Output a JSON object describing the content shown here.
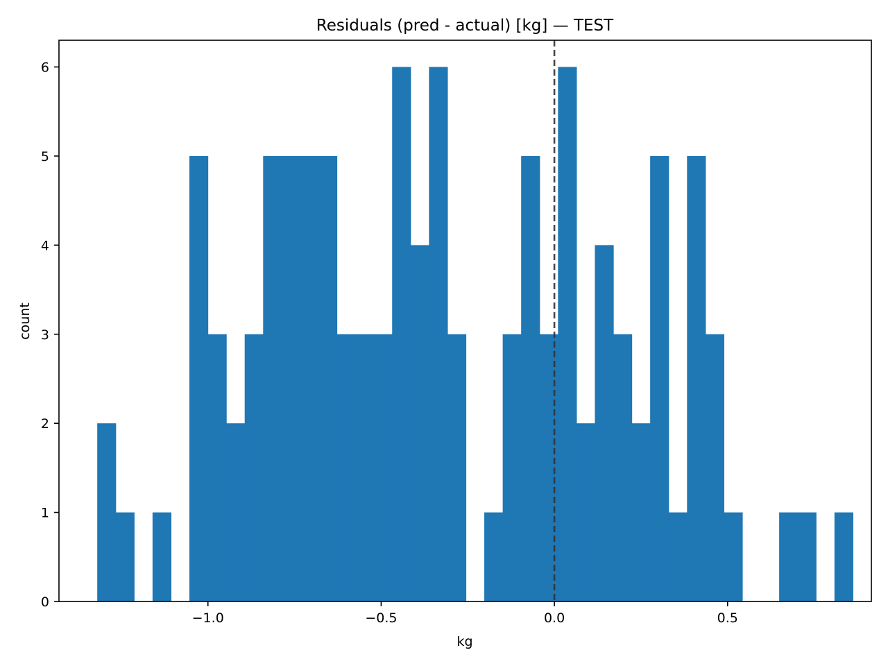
{
  "chart_data": {
    "type": "bar",
    "title": "Residuals (pred - actual) [kg] — TEST",
    "xlabel": "kg",
    "ylabel": "count",
    "xlim": [
      -1.43,
      0.915
    ],
    "ylim": [
      0,
      6.3
    ],
    "xticks": [
      -1.0,
      -0.5,
      0.0,
      0.5
    ],
    "xtick_labels": [
      "−1.0",
      "−0.5",
      "0.0",
      "0.5"
    ],
    "yticks": [
      0,
      1,
      2,
      3,
      4,
      5,
      6
    ],
    "ytick_labels": [
      "0",
      "1",
      "2",
      "3",
      "4",
      "5",
      "6"
    ],
    "grid": false,
    "bin_start": -1.3195,
    "bin_width": 0.0532,
    "counts": [
      2,
      1,
      0,
      1,
      0,
      5,
      3,
      2,
      3,
      5,
      5,
      5,
      5,
      3,
      3,
      3,
      6,
      4,
      6,
      3,
      0,
      1,
      3,
      5,
      3,
      6,
      2,
      4,
      3,
      2,
      5,
      1,
      5,
      3,
      1,
      0,
      0,
      1,
      1,
      0,
      1
    ],
    "bar_color": "#1f77b4",
    "reference_line": {
      "x": 0.0,
      "style": "dashed",
      "color": "#333333"
    }
  }
}
